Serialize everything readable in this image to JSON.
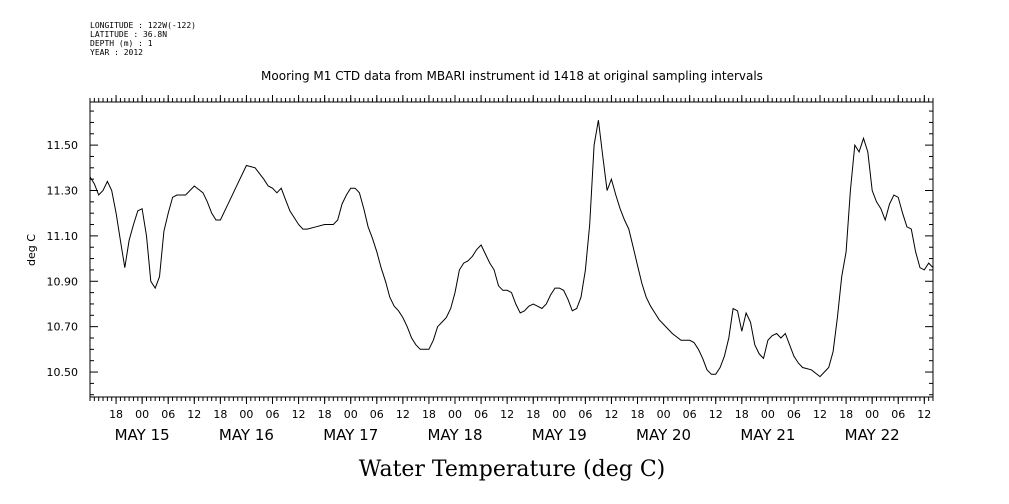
{
  "header": {
    "longitude": "LONGITUDE : 122W(-122)",
    "latitude": "LATITUDE : 36.8N",
    "depth": "DEPTH (m) : 1",
    "year": "YEAR : 2012"
  },
  "chart_data": {
    "type": "line",
    "title": "Mooring M1 CTD data from MBARI instrument id 1418 at original sampling intervals",
    "xlabel": "Water Temperature (deg C)",
    "ylabel": "deg C",
    "xlim": [
      "2012-05-14T12:00",
      "2012-05-22T14:00"
    ],
    "ylim": [
      10.39,
      11.69
    ],
    "yticks": [
      "10.50",
      "10.70",
      "10.90",
      "11.10",
      "11.30",
      "11.50"
    ],
    "hour_ticks": [
      {
        "t": "2012-05-14T18:00",
        "label": "18"
      },
      {
        "t": "2012-05-15T00:00",
        "label": "00"
      },
      {
        "t": "2012-05-15T06:00",
        "label": "06"
      },
      {
        "t": "2012-05-15T12:00",
        "label": "12"
      },
      {
        "t": "2012-05-15T18:00",
        "label": "18"
      },
      {
        "t": "2012-05-16T00:00",
        "label": "00"
      },
      {
        "t": "2012-05-16T06:00",
        "label": "06"
      },
      {
        "t": "2012-05-16T12:00",
        "label": "12"
      },
      {
        "t": "2012-05-16T18:00",
        "label": "18"
      },
      {
        "t": "2012-05-17T00:00",
        "label": "00"
      },
      {
        "t": "2012-05-17T06:00",
        "label": "06"
      },
      {
        "t": "2012-05-17T12:00",
        "label": "12"
      },
      {
        "t": "2012-05-17T18:00",
        "label": "18"
      },
      {
        "t": "2012-05-18T00:00",
        "label": "00"
      },
      {
        "t": "2012-05-18T06:00",
        "label": "06"
      },
      {
        "t": "2012-05-18T12:00",
        "label": "12"
      },
      {
        "t": "2012-05-18T18:00",
        "label": "18"
      },
      {
        "t": "2012-05-19T00:00",
        "label": "00"
      },
      {
        "t": "2012-05-19T06:00",
        "label": "06"
      },
      {
        "t": "2012-05-19T12:00",
        "label": "12"
      },
      {
        "t": "2012-05-19T18:00",
        "label": "18"
      },
      {
        "t": "2012-05-20T00:00",
        "label": "00"
      },
      {
        "t": "2012-05-20T06:00",
        "label": "06"
      },
      {
        "t": "2012-05-20T12:00",
        "label": "12"
      },
      {
        "t": "2012-05-20T18:00",
        "label": "18"
      },
      {
        "t": "2012-05-21T00:00",
        "label": "00"
      },
      {
        "t": "2012-05-21T06:00",
        "label": "06"
      },
      {
        "t": "2012-05-21T12:00",
        "label": "12"
      },
      {
        "t": "2012-05-21T18:00",
        "label": "18"
      },
      {
        "t": "2012-05-22T00:00",
        "label": "00"
      },
      {
        "t": "2012-05-22T06:00",
        "label": "06"
      },
      {
        "t": "2012-05-22T12:00",
        "label": "12"
      }
    ],
    "day_labels": [
      {
        "t": "2012-05-15T00:00",
        "label": "MAY 15"
      },
      {
        "t": "2012-05-16T00:00",
        "label": "MAY 16"
      },
      {
        "t": "2012-05-17T00:00",
        "label": "MAY 17"
      },
      {
        "t": "2012-05-18T00:00",
        "label": "MAY 18"
      },
      {
        "t": "2012-05-19T00:00",
        "label": "MAY 19"
      },
      {
        "t": "2012-05-20T00:00",
        "label": "MAY 20"
      },
      {
        "t": "2012-05-21T00:00",
        "label": "MAY 21"
      },
      {
        "t": "2012-05-22T00:00",
        "label": "MAY 22"
      }
    ],
    "series": [
      {
        "line_color": "#000000",
        "points": [
          [
            "2012-05-14T12:00",
            11.36
          ],
          [
            "2012-05-14T13:00",
            11.33
          ],
          [
            "2012-05-14T14:00",
            11.28
          ],
          [
            "2012-05-14T15:00",
            11.3
          ],
          [
            "2012-05-14T16:00",
            11.34
          ],
          [
            "2012-05-14T17:00",
            11.3
          ],
          [
            "2012-05-14T18:00",
            11.2
          ],
          [
            "2012-05-14T19:00",
            11.08
          ],
          [
            "2012-05-14T20:00",
            10.96
          ],
          [
            "2012-05-14T21:00",
            11.08
          ],
          [
            "2012-05-14T22:00",
            11.15
          ],
          [
            "2012-05-14T23:00",
            11.21
          ],
          [
            "2012-05-15T00:00",
            11.22
          ],
          [
            "2012-05-15T01:00",
            11.1
          ],
          [
            "2012-05-15T02:00",
            10.9
          ],
          [
            "2012-05-15T03:00",
            10.87
          ],
          [
            "2012-05-15T04:00",
            10.92
          ],
          [
            "2012-05-15T05:00",
            11.12
          ],
          [
            "2012-05-15T06:00",
            11.2
          ],
          [
            "2012-05-15T07:00",
            11.27
          ],
          [
            "2012-05-15T08:00",
            11.28
          ],
          [
            "2012-05-15T10:00",
            11.28
          ],
          [
            "2012-05-15T12:00",
            11.32
          ],
          [
            "2012-05-15T14:00",
            11.29
          ],
          [
            "2012-05-15T15:00",
            11.25
          ],
          [
            "2012-05-15T16:00",
            11.2
          ],
          [
            "2012-05-15T17:00",
            11.17
          ],
          [
            "2012-05-15T18:00",
            11.17
          ],
          [
            "2012-05-15T20:00",
            11.25
          ],
          [
            "2012-05-15T22:00",
            11.33
          ],
          [
            "2012-05-16T00:00",
            11.41
          ],
          [
            "2012-05-16T02:00",
            11.4
          ],
          [
            "2012-05-16T04:00",
            11.35
          ],
          [
            "2012-05-16T05:00",
            11.32
          ],
          [
            "2012-05-16T06:00",
            11.31
          ],
          [
            "2012-05-16T07:00",
            11.29
          ],
          [
            "2012-05-16T08:00",
            11.31
          ],
          [
            "2012-05-16T09:00",
            11.26
          ],
          [
            "2012-05-16T10:00",
            11.21
          ],
          [
            "2012-05-16T12:00",
            11.15
          ],
          [
            "2012-05-16T13:00",
            11.13
          ],
          [
            "2012-05-16T14:00",
            11.13
          ],
          [
            "2012-05-16T16:00",
            11.14
          ],
          [
            "2012-05-16T18:00",
            11.15
          ],
          [
            "2012-05-16T20:00",
            11.15
          ],
          [
            "2012-05-16T21:00",
            11.17
          ],
          [
            "2012-05-16T22:00",
            11.24
          ],
          [
            "2012-05-16T23:00",
            11.28
          ],
          [
            "2012-05-17T00:00",
            11.31
          ],
          [
            "2012-05-17T01:00",
            11.31
          ],
          [
            "2012-05-17T02:00",
            11.29
          ],
          [
            "2012-05-17T03:00",
            11.22
          ],
          [
            "2012-05-17T04:00",
            11.14
          ],
          [
            "2012-05-17T05:00",
            11.09
          ],
          [
            "2012-05-17T06:00",
            11.03
          ],
          [
            "2012-05-17T07:00",
            10.96
          ],
          [
            "2012-05-17T08:00",
            10.9
          ],
          [
            "2012-05-17T09:00",
            10.83
          ],
          [
            "2012-05-17T10:00",
            10.79
          ],
          [
            "2012-05-17T11:00",
            10.77
          ],
          [
            "2012-05-17T12:00",
            10.74
          ],
          [
            "2012-05-17T13:00",
            10.7
          ],
          [
            "2012-05-17T14:00",
            10.65
          ],
          [
            "2012-05-17T15:00",
            10.62
          ],
          [
            "2012-05-17T16:00",
            10.6
          ],
          [
            "2012-05-17T17:00",
            10.6
          ],
          [
            "2012-05-17T18:00",
            10.6
          ],
          [
            "2012-05-17T19:00",
            10.64
          ],
          [
            "2012-05-17T20:00",
            10.7
          ],
          [
            "2012-05-17T21:00",
            10.72
          ],
          [
            "2012-05-17T22:00",
            10.74
          ],
          [
            "2012-05-17T23:00",
            10.78
          ],
          [
            "2012-05-18T00:00",
            10.85
          ],
          [
            "2012-05-18T01:00",
            10.95
          ],
          [
            "2012-05-18T02:00",
            10.98
          ],
          [
            "2012-05-18T03:00",
            10.99
          ],
          [
            "2012-05-18T04:00",
            11.01
          ],
          [
            "2012-05-18T05:00",
            11.04
          ],
          [
            "2012-05-18T06:00",
            11.06
          ],
          [
            "2012-05-18T07:00",
            11.02
          ],
          [
            "2012-05-18T08:00",
            10.98
          ],
          [
            "2012-05-18T09:00",
            10.95
          ],
          [
            "2012-05-18T10:00",
            10.88
          ],
          [
            "2012-05-18T11:00",
            10.86
          ],
          [
            "2012-05-18T12:00",
            10.86
          ],
          [
            "2012-05-18T13:00",
            10.85
          ],
          [
            "2012-05-18T14:00",
            10.8
          ],
          [
            "2012-05-18T15:00",
            10.76
          ],
          [
            "2012-05-18T16:00",
            10.77
          ],
          [
            "2012-05-18T17:00",
            10.79
          ],
          [
            "2012-05-18T18:00",
            10.8
          ],
          [
            "2012-05-18T19:00",
            10.79
          ],
          [
            "2012-05-18T20:00",
            10.78
          ],
          [
            "2012-05-18T21:00",
            10.8
          ],
          [
            "2012-05-18T22:00",
            10.84
          ],
          [
            "2012-05-18T23:00",
            10.87
          ],
          [
            "2012-05-19T00:00",
            10.87
          ],
          [
            "2012-05-19T01:00",
            10.86
          ],
          [
            "2012-05-19T02:00",
            10.82
          ],
          [
            "2012-05-19T03:00",
            10.77
          ],
          [
            "2012-05-19T04:00",
            10.78
          ],
          [
            "2012-05-19T05:00",
            10.83
          ],
          [
            "2012-05-19T06:00",
            10.95
          ],
          [
            "2012-05-19T07:00",
            11.15
          ],
          [
            "2012-05-19T08:00",
            11.5
          ],
          [
            "2012-05-19T09:00",
            11.61
          ],
          [
            "2012-05-19T10:00",
            11.45
          ],
          [
            "2012-05-19T11:00",
            11.3
          ],
          [
            "2012-05-19T12:00",
            11.35
          ],
          [
            "2012-05-19T13:00",
            11.28
          ],
          [
            "2012-05-19T14:00",
            11.22
          ],
          [
            "2012-05-19T15:00",
            11.17
          ],
          [
            "2012-05-19T16:00",
            11.13
          ],
          [
            "2012-05-19T17:00",
            11.05
          ],
          [
            "2012-05-19T18:00",
            10.97
          ],
          [
            "2012-05-19T19:00",
            10.89
          ],
          [
            "2012-05-19T20:00",
            10.83
          ],
          [
            "2012-05-19T21:00",
            10.79
          ],
          [
            "2012-05-19T22:00",
            10.76
          ],
          [
            "2012-05-19T23:00",
            10.73
          ],
          [
            "2012-05-20T00:00",
            10.71
          ],
          [
            "2012-05-20T02:00",
            10.67
          ],
          [
            "2012-05-20T04:00",
            10.64
          ],
          [
            "2012-05-20T06:00",
            10.64
          ],
          [
            "2012-05-20T07:00",
            10.63
          ],
          [
            "2012-05-20T08:00",
            10.6
          ],
          [
            "2012-05-20T09:00",
            10.56
          ],
          [
            "2012-05-20T10:00",
            10.51
          ],
          [
            "2012-05-20T11:00",
            10.49
          ],
          [
            "2012-05-20T12:00",
            10.49
          ],
          [
            "2012-05-20T13:00",
            10.52
          ],
          [
            "2012-05-20T14:00",
            10.57
          ],
          [
            "2012-05-20T15:00",
            10.65
          ],
          [
            "2012-05-20T16:00",
            10.78
          ],
          [
            "2012-05-20T17:00",
            10.77
          ],
          [
            "2012-05-20T18:00",
            10.68
          ],
          [
            "2012-05-20T19:00",
            10.76
          ],
          [
            "2012-05-20T20:00",
            10.72
          ],
          [
            "2012-05-20T21:00",
            10.62
          ],
          [
            "2012-05-20T22:00",
            10.58
          ],
          [
            "2012-05-20T23:00",
            10.56
          ],
          [
            "2012-05-21T00:00",
            10.64
          ],
          [
            "2012-05-21T01:00",
            10.66
          ],
          [
            "2012-05-21T02:00",
            10.67
          ],
          [
            "2012-05-21T03:00",
            10.65
          ],
          [
            "2012-05-21T04:00",
            10.67
          ],
          [
            "2012-05-21T05:00",
            10.62
          ],
          [
            "2012-05-21T06:00",
            10.57
          ],
          [
            "2012-05-21T07:00",
            10.54
          ],
          [
            "2012-05-21T08:00",
            10.52
          ],
          [
            "2012-05-21T10:00",
            10.51
          ],
          [
            "2012-05-21T12:00",
            10.48
          ],
          [
            "2012-05-21T13:00",
            10.5
          ],
          [
            "2012-05-21T14:00",
            10.52
          ],
          [
            "2012-05-21T15:00",
            10.59
          ],
          [
            "2012-05-21T16:00",
            10.74
          ],
          [
            "2012-05-21T17:00",
            10.92
          ],
          [
            "2012-05-21T18:00",
            11.03
          ],
          [
            "2012-05-21T19:00",
            11.3
          ],
          [
            "2012-05-21T20:00",
            11.5
          ],
          [
            "2012-05-21T21:00",
            11.47
          ],
          [
            "2012-05-21T22:00",
            11.53
          ],
          [
            "2012-05-21T23:00",
            11.47
          ],
          [
            "2012-05-22T00:00",
            11.3
          ],
          [
            "2012-05-22T01:00",
            11.25
          ],
          [
            "2012-05-22T02:00",
            11.22
          ],
          [
            "2012-05-22T03:00",
            11.17
          ],
          [
            "2012-05-22T04:00",
            11.24
          ],
          [
            "2012-05-22T05:00",
            11.28
          ],
          [
            "2012-05-22T06:00",
            11.27
          ],
          [
            "2012-05-22T07:00",
            11.2
          ],
          [
            "2012-05-22T08:00",
            11.14
          ],
          [
            "2012-05-22T09:00",
            11.13
          ],
          [
            "2012-05-22T10:00",
            11.03
          ],
          [
            "2012-05-22T11:00",
            10.96
          ],
          [
            "2012-05-22T12:00",
            10.95
          ],
          [
            "2012-05-22T13:00",
            10.98
          ],
          [
            "2012-05-22T14:00",
            10.96
          ]
        ]
      }
    ]
  }
}
